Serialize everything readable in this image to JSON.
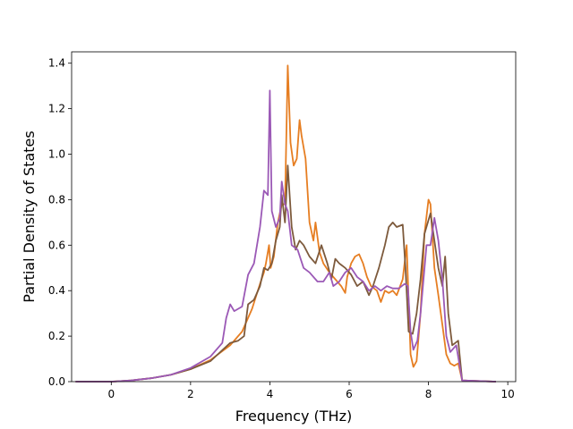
{
  "chart_data": {
    "type": "line",
    "title": "",
    "xlabel": "Frequency (THz)",
    "ylabel": "Partial Density of States",
    "xlim": [
      -1.0,
      10.2
    ],
    "ylim": [
      0.0,
      1.45
    ],
    "x_ticks": [
      0,
      2,
      4,
      6,
      8,
      10
    ],
    "y_ticks": [
      0.0,
      0.2,
      0.4,
      0.6,
      0.8,
      1.0,
      1.2,
      1.4
    ],
    "grid": false,
    "legend": "none",
    "series": [
      {
        "color": "#e67e22",
        "points": [
          [
            -0.9,
            0
          ],
          [
            0,
            0
          ],
          [
            0.5,
            0.005
          ],
          [
            1,
            0.015
          ],
          [
            1.5,
            0.03
          ],
          [
            2,
            0.055
          ],
          [
            2.5,
            0.095
          ],
          [
            3,
            0.16
          ],
          [
            3.3,
            0.22
          ],
          [
            3.55,
            0.32
          ],
          [
            3.75,
            0.43
          ],
          [
            3.85,
            0.48
          ],
          [
            3.9,
            0.52
          ],
          [
            3.98,
            0.6
          ],
          [
            4.02,
            0.5
          ],
          [
            4.1,
            0.55
          ],
          [
            4.2,
            0.7
          ],
          [
            4.3,
            0.78
          ],
          [
            4.38,
            0.78
          ],
          [
            4.45,
            1.39
          ],
          [
            4.52,
            1.05
          ],
          [
            4.6,
            0.95
          ],
          [
            4.68,
            0.98
          ],
          [
            4.75,
            1.15
          ],
          [
            4.8,
            1.08
          ],
          [
            4.9,
            0.98
          ],
          [
            5.0,
            0.7
          ],
          [
            5.1,
            0.62
          ],
          [
            5.15,
            0.7
          ],
          [
            5.25,
            0.57
          ],
          [
            5.35,
            0.52
          ],
          [
            5.5,
            0.48
          ],
          [
            5.6,
            0.46
          ],
          [
            5.7,
            0.44
          ],
          [
            5.8,
            0.42
          ],
          [
            5.9,
            0.39
          ],
          [
            5.95,
            0.46
          ],
          [
            6.05,
            0.52
          ],
          [
            6.15,
            0.55
          ],
          [
            6.25,
            0.56
          ],
          [
            6.35,
            0.52
          ],
          [
            6.45,
            0.46
          ],
          [
            6.55,
            0.42
          ],
          [
            6.7,
            0.4
          ],
          [
            6.8,
            0.35
          ],
          [
            6.9,
            0.4
          ],
          [
            7.0,
            0.39
          ],
          [
            7.1,
            0.4
          ],
          [
            7.2,
            0.38
          ],
          [
            7.35,
            0.45
          ],
          [
            7.45,
            0.6
          ],
          [
            7.55,
            0.12
          ],
          [
            7.62,
            0.065
          ],
          [
            7.7,
            0.09
          ],
          [
            7.8,
            0.3
          ],
          [
            7.9,
            0.65
          ],
          [
            8.0,
            0.8
          ],
          [
            8.05,
            0.78
          ],
          [
            8.15,
            0.5
          ],
          [
            8.25,
            0.38
          ],
          [
            8.35,
            0.25
          ],
          [
            8.45,
            0.12
          ],
          [
            8.55,
            0.08
          ],
          [
            8.65,
            0.07
          ],
          [
            8.75,
            0.08
          ],
          [
            8.85,
            0.005
          ],
          [
            9.7,
            0
          ]
        ]
      },
      {
        "color": "#7d5a3c",
        "points": [
          [
            -0.9,
            0
          ],
          [
            0,
            0
          ],
          [
            0.5,
            0.005
          ],
          [
            1,
            0.015
          ],
          [
            1.5,
            0.03
          ],
          [
            2,
            0.055
          ],
          [
            2.5,
            0.09
          ],
          [
            3,
            0.17
          ],
          [
            3.2,
            0.18
          ],
          [
            3.35,
            0.2
          ],
          [
            3.45,
            0.34
          ],
          [
            3.6,
            0.36
          ],
          [
            3.75,
            0.42
          ],
          [
            3.85,
            0.5
          ],
          [
            3.95,
            0.49
          ],
          [
            4.05,
            0.52
          ],
          [
            4.15,
            0.62
          ],
          [
            4.25,
            0.68
          ],
          [
            4.3,
            0.82
          ],
          [
            4.38,
            0.7
          ],
          [
            4.45,
            0.95
          ],
          [
            4.55,
            0.68
          ],
          [
            4.65,
            0.58
          ],
          [
            4.75,
            0.62
          ],
          [
            4.85,
            0.6
          ],
          [
            5.0,
            0.55
          ],
          [
            5.15,
            0.52
          ],
          [
            5.3,
            0.6
          ],
          [
            5.45,
            0.52
          ],
          [
            5.55,
            0.45
          ],
          [
            5.65,
            0.54
          ],
          [
            5.75,
            0.52
          ],
          [
            5.9,
            0.5
          ],
          [
            6.05,
            0.47
          ],
          [
            6.2,
            0.42
          ],
          [
            6.35,
            0.44
          ],
          [
            6.5,
            0.38
          ],
          [
            6.6,
            0.42
          ],
          [
            6.75,
            0.5
          ],
          [
            6.9,
            0.6
          ],
          [
            7.0,
            0.68
          ],
          [
            7.1,
            0.7
          ],
          [
            7.2,
            0.68
          ],
          [
            7.35,
            0.69
          ],
          [
            7.42,
            0.5
          ],
          [
            7.5,
            0.22
          ],
          [
            7.6,
            0.21
          ],
          [
            7.7,
            0.3
          ],
          [
            7.8,
            0.45
          ],
          [
            7.9,
            0.65
          ],
          [
            8.05,
            0.74
          ],
          [
            8.15,
            0.62
          ],
          [
            8.25,
            0.5
          ],
          [
            8.35,
            0.42
          ],
          [
            8.42,
            0.55
          ],
          [
            8.5,
            0.3
          ],
          [
            8.6,
            0.16
          ],
          [
            8.75,
            0.18
          ],
          [
            8.85,
            0.005
          ],
          [
            9.7,
            0
          ]
        ]
      },
      {
        "color": "#9b59b6",
        "points": [
          [
            -0.9,
            0
          ],
          [
            0,
            0
          ],
          [
            0.5,
            0.005
          ],
          [
            1,
            0.015
          ],
          [
            1.5,
            0.03
          ],
          [
            2,
            0.06
          ],
          [
            2.5,
            0.11
          ],
          [
            2.8,
            0.17
          ],
          [
            2.9,
            0.28
          ],
          [
            3.0,
            0.34
          ],
          [
            3.1,
            0.31
          ],
          [
            3.3,
            0.33
          ],
          [
            3.45,
            0.47
          ],
          [
            3.6,
            0.52
          ],
          [
            3.75,
            0.68
          ],
          [
            3.85,
            0.84
          ],
          [
            3.95,
            0.82
          ],
          [
            4.0,
            1.28
          ],
          [
            4.05,
            0.75
          ],
          [
            4.15,
            0.68
          ],
          [
            4.25,
            0.72
          ],
          [
            4.3,
            0.88
          ],
          [
            4.38,
            0.78
          ],
          [
            4.45,
            0.75
          ],
          [
            4.55,
            0.6
          ],
          [
            4.7,
            0.58
          ],
          [
            4.85,
            0.5
          ],
          [
            5.0,
            0.48
          ],
          [
            5.2,
            0.44
          ],
          [
            5.35,
            0.44
          ],
          [
            5.5,
            0.48
          ],
          [
            5.6,
            0.42
          ],
          [
            5.75,
            0.44
          ],
          [
            5.9,
            0.48
          ],
          [
            6.05,
            0.5
          ],
          [
            6.2,
            0.46
          ],
          [
            6.35,
            0.44
          ],
          [
            6.5,
            0.4
          ],
          [
            6.65,
            0.42
          ],
          [
            6.8,
            0.4
          ],
          [
            6.95,
            0.42
          ],
          [
            7.1,
            0.41
          ],
          [
            7.25,
            0.41
          ],
          [
            7.4,
            0.43
          ],
          [
            7.48,
            0.42
          ],
          [
            7.55,
            0.22
          ],
          [
            7.62,
            0.14
          ],
          [
            7.72,
            0.18
          ],
          [
            7.8,
            0.3
          ],
          [
            7.95,
            0.6
          ],
          [
            8.05,
            0.6
          ],
          [
            8.15,
            0.72
          ],
          [
            8.25,
            0.62
          ],
          [
            8.35,
            0.45
          ],
          [
            8.45,
            0.2
          ],
          [
            8.55,
            0.13
          ],
          [
            8.7,
            0.16
          ],
          [
            8.85,
            0.005
          ],
          [
            9.7,
            0
          ]
        ]
      }
    ]
  }
}
